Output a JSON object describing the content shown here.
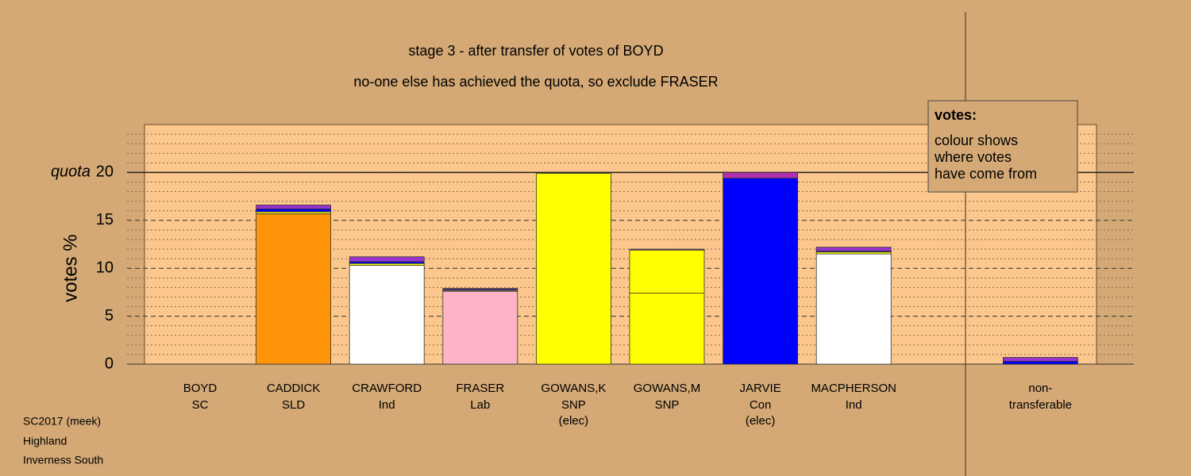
{
  "chart_data": {
    "type": "stacked-bar",
    "title": "stage 3 - after transfer of votes of BOYD",
    "subtitle": "no-one else has achieved the quota, so exclude FRASER",
    "y_label": "votes %",
    "categories": [
      "BOYD",
      "CADDICK",
      "CRAWFORD",
      "FRASER",
      "GOWANS,K",
      "GOWANS,M",
      "JARVIE",
      "MACPHERSON",
      null,
      "non-"
    ],
    "parties": [
      "SC",
      "SLD",
      "Ind",
      "Lab",
      "SNP",
      "SNP",
      "Con",
      "Ind",
      null,
      "transferable"
    ],
    "notes": [
      null,
      null,
      null,
      null,
      "(elec)",
      null,
      "(elec)",
      null,
      null,
      null
    ],
    "stacks": [
      [],
      [
        {
          "value": 15.7,
          "color": "#ff9409"
        },
        {
          "value": 0.2,
          "color": "#ffff00"
        },
        {
          "value": 0.3,
          "color": "#0000ff"
        },
        {
          "value": 0.4,
          "color": "#9933cc"
        }
      ],
      [
        {
          "value": 10.3,
          "color": "#ffffff"
        },
        {
          "value": 0.2,
          "color": "#ffff00"
        },
        {
          "value": 0.2,
          "color": "#0000ff"
        },
        {
          "value": 0.5,
          "color": "#9933cc"
        }
      ],
      [
        {
          "value": 7.6,
          "color": "#ffb3c6"
        },
        {
          "value": 0.1,
          "color": "#ffff00"
        },
        {
          "value": 0.1,
          "color": "#0000ff"
        },
        {
          "value": 0.1,
          "color": "#9933cc"
        }
      ],
      [
        {
          "value": 19.9,
          "color": "#ffff00"
        }
      ],
      [
        {
          "value": 7.4,
          "color": "#ffff00"
        },
        {
          "value": 4.5,
          "color": "#ffff00"
        },
        {
          "value": 0.1,
          "color": "#9933cc"
        }
      ],
      [
        {
          "value": 19.4,
          "color": "#0000ff"
        },
        {
          "value": 0.6,
          "color": "#b030b0"
        }
      ],
      [
        {
          "value": 11.5,
          "color": "#ffffff"
        },
        {
          "value": 0.2,
          "color": "#ffff00"
        },
        {
          "value": 0.1,
          "color": "#0000ff"
        },
        {
          "value": 0.4,
          "color": "#9933cc"
        }
      ],
      [],
      [
        {
          "value": 0.3,
          "color": "#0000ff"
        },
        {
          "value": 0.4,
          "color": "#9933cc"
        }
      ]
    ],
    "ylim": [
      0,
      25
    ],
    "yticks": [
      0,
      5,
      10,
      15,
      20
    ],
    "minor_yticks": [
      1,
      2,
      3,
      4,
      6,
      7,
      8,
      9,
      11,
      12,
      13,
      14,
      16,
      17,
      18,
      19,
      21,
      22,
      23,
      24
    ],
    "quota": {
      "value": 20,
      "label": "quota"
    },
    "info_box": {
      "heading": "votes:",
      "lines": [
        "colour shows",
        "where votes",
        "have come from"
      ]
    },
    "footer": [
      "SC2017 (meek)",
      "Highland",
      "Inverness South"
    ]
  }
}
